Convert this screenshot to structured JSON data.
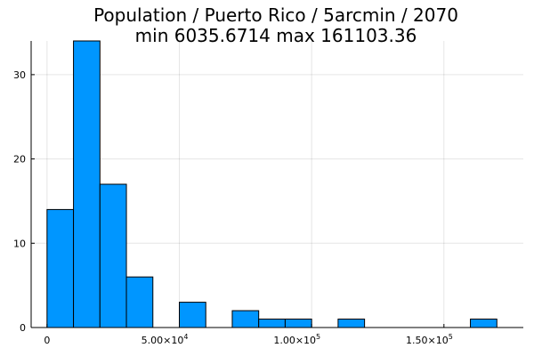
{
  "chart_data": {
    "type": "bar",
    "title_line1": "Population / Puerto Rico / 5arcmin / 2070",
    "title_line2": "min 6035.6714  max 161103.36",
    "xlabel": "",
    "ylabel": "",
    "bin_width": 10000,
    "bins": [
      {
        "x0": 0,
        "x1": 10000,
        "count": 14
      },
      {
        "x0": 10000,
        "x1": 20000,
        "count": 34
      },
      {
        "x0": 20000,
        "x1": 30000,
        "count": 17
      },
      {
        "x0": 30000,
        "x1": 40000,
        "count": 6
      },
      {
        "x0": 50000,
        "x1": 60000,
        "count": 3
      },
      {
        "x0": 70000,
        "x1": 80000,
        "count": 2
      },
      {
        "x0": 80000,
        "x1": 90000,
        "count": 1
      },
      {
        "x0": 90000,
        "x1": 100000,
        "count": 1
      },
      {
        "x0": 110000,
        "x1": 120000,
        "count": 1
      },
      {
        "x0": 160000,
        "x1": 170000,
        "count": 1
      }
    ],
    "xlim": [
      -6000,
      180000
    ],
    "ylim": [
      0,
      34
    ],
    "x_ticks": [
      {
        "value": 0,
        "base": "0",
        "exp": ""
      },
      {
        "value": 50000,
        "base": "5.00×10",
        "exp": "4"
      },
      {
        "value": 100000,
        "base": "1.00×10",
        "exp": "5"
      },
      {
        "value": 150000,
        "base": "1.50×10",
        "exp": "5"
      }
    ],
    "y_ticks": [
      0,
      10,
      20,
      30
    ],
    "grid": true,
    "legend": "none",
    "bar_color": "#0096ff",
    "bar_edge_color": "#000000"
  }
}
